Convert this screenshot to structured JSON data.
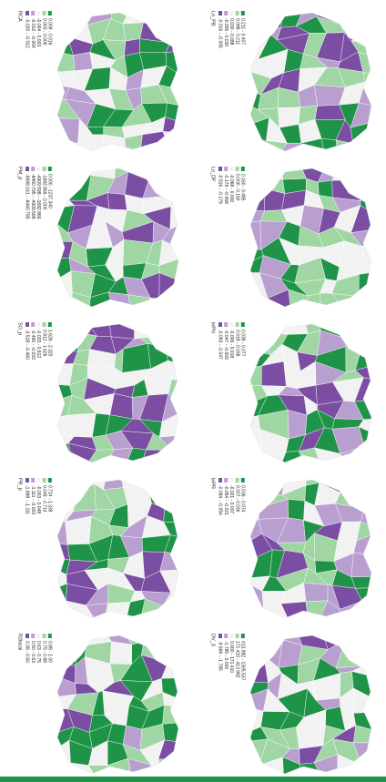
{
  "colors": [
    "#7b4ea3",
    "#b89fd0",
    "#f3f2f2",
    "#9fd6a4",
    "#1f9448"
  ],
  "panels": [
    {
      "title": "RCA",
      "legend": [
        "-0.020 - -0.012",
        "-0.012 - -0.004",
        "-0.004 - 0.003",
        "0.003 - 0.009",
        "0.009 - 0.016"
      ]
    },
    {
      "title": "Ln_PB",
      "legend": [
        "-0.016 - -0.005",
        "-0.005 - 0.030",
        "0.030 - 0.088",
        "0.088 - 0.211",
        "0.211 - 0.407"
      ]
    },
    {
      "title": "PM_p",
      "legend": [
        "-9699.161 - -8460.795",
        "-8460.795 - -4909.598",
        "-4909.598 - -1682.866",
        "-1682.866 - 0.000",
        "0.000 - 1237.340"
      ]
    },
    {
      "title": "Ln_DF",
      "legend": [
        "-0.516 - -0.179",
        "-0.179 - -0.068",
        "-0.068 - 0.000",
        "0.000 - 0.160",
        "0.160 - 0.485"
      ]
    },
    {
      "title": "SO_p",
      "legend": [
        "-0.518 - -0.460",
        "-0.460 - -0.033",
        "-0.033 - 0.812",
        "0.812 - 1.626",
        "1.626 - 2.320"
      ]
    },
    {
      "title": "lnPN",
      "legend": [
        "-0.093 - -0.047",
        "-0.047 - -0.009",
        "-0.009 - 0.018",
        "0.018 - 0.038",
        "0.038 - 0.077"
      ]
    },
    {
      "title": "PR_p",
      "legend": [
        "-1.888 - -1.111",
        "-1.111 - -0.003",
        "-0.003 - 0.048",
        "0.048 - 0.714",
        "0.714 - 1.338"
      ]
    },
    {
      "title": "lnPR",
      "legend": [
        "-0.084 - -0.054",
        "-0.054 - -0.021",
        "-0.021 - 0.007",
        "0.007 - 0.036",
        "0.036 - 0.074"
      ]
    },
    {
      "title": "R2local",
      "legend": [
        "0.38 - 0.50",
        "0.50 - 0.63",
        "0.63 - 0.75",
        "0.75 - 0.88",
        "0.88 - 1.00"
      ]
    },
    {
      "title": "DV_3",
      "legend": [
        "-9.669 - -1.785",
        "-1.785 - 0.000",
        "0.000 - 171.410",
        "171.410 - 413.982",
        "413.982 - 1305.537"
      ]
    }
  ]
}
